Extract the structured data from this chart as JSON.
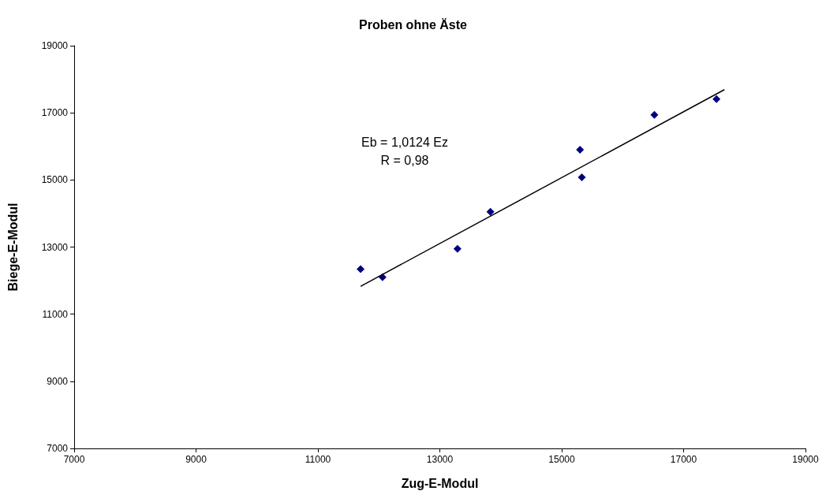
{
  "chart_data": {
    "type": "scatter",
    "title": "Proben ohne Äste",
    "xlabel": "Zug-E-Modul",
    "ylabel": "Biege-E-Modul",
    "annotations": [
      "Eb = 1,0124 Ez",
      "R = 0,98"
    ],
    "xlim": [
      7000,
      19000
    ],
    "xticks": [
      7000,
      9000,
      11000,
      13000,
      15000,
      17000,
      19000
    ],
    "ylim": [
      7000,
      19000
    ],
    "yticks": [
      7000,
      9000,
      11000,
      13000,
      15000,
      17000,
      19000
    ],
    "grid": false,
    "series": [
      {
        "color": "#000080",
        "marker": "diamond",
        "x": [
          11700,
          12060,
          13290,
          13830,
          15300,
          15330,
          16520,
          17540
        ],
        "values": [
          12340,
          12100,
          12950,
          14050,
          15900,
          15080,
          16940,
          17410
        ]
      },
      {
        "type": "line",
        "marker": "none",
        "color": "#000000",
        "line_style": "solid",
        "x": [
          11700,
          17670
        ],
        "values": [
          11830,
          17690
        ]
      }
    ]
  }
}
